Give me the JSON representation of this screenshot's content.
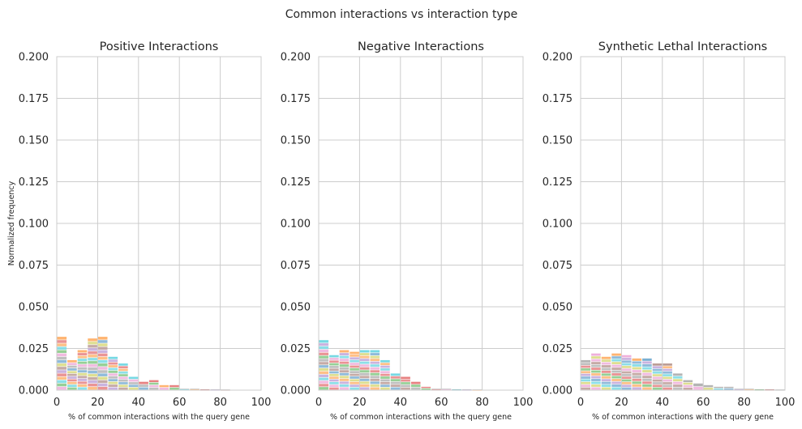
{
  "figure": {
    "suptitle": "Common interactions vs interaction type",
    "ylabel": "Normalized frequency"
  },
  "chart_data": [
    {
      "type": "bar",
      "title": "Positive Interactions",
      "xlabel": "% of common interactions with the query gene",
      "ylabel": "Normalized frequency",
      "xlim": [
        0,
        100
      ],
      "ylim": [
        0,
        0.2
      ],
      "xticks": [
        "0",
        "20",
        "40",
        "60",
        "80",
        "100"
      ],
      "yticks": [
        "0.000",
        "0.025",
        "0.050",
        "0.075",
        "0.100",
        "0.125",
        "0.150",
        "0.175",
        "0.200"
      ],
      "grid": true,
      "bin_width": 5,
      "bin_starts": [
        0,
        5,
        10,
        15,
        20,
        25,
        30,
        35,
        40,
        45,
        50,
        55,
        60,
        65,
        70,
        75,
        80,
        85,
        90,
        95
      ],
      "stacked_totals": [
        0.032,
        0.018,
        0.024,
        0.031,
        0.032,
        0.02,
        0.016,
        0.008,
        0.005,
        0.006,
        0.003,
        0.003,
        0.001,
        0.001,
        0.0005,
        0.0004,
        0.0003,
        0,
        0,
        0
      ],
      "segment_colors": [
        "#e377c2",
        "#2ca02c",
        "#17becf",
        "#ff7f0e",
        "#d62728",
        "#9467bd",
        "#8c564b",
        "#bcbd22",
        "#1f77b4",
        "#7f7f7f"
      ],
      "dominant_colors": [
        "#ff7f0e",
        "#ff7f0e",
        "#ff7f0e",
        "#ff7f0e",
        "#ff7f0e",
        "#17becf",
        "#17becf",
        "#17becf",
        "#d62728",
        "#d62728",
        "#ff7f0e",
        "#d62728",
        "#7f7f7f",
        "#7f7f7f",
        "#7f7f7f",
        "#7f7f7f",
        "#7f7f7f",
        "#7f7f7f",
        "#7f7f7f",
        "#7f7f7f"
      ]
    },
    {
      "type": "bar",
      "title": "Negative Interactions",
      "xlabel": "% of common interactions with the query gene",
      "ylabel": "",
      "xlim": [
        0,
        100
      ],
      "ylim": [
        0,
        0.2
      ],
      "xticks": [
        "0",
        "20",
        "40",
        "60",
        "80",
        "100"
      ],
      "yticks": [
        "0.000",
        "0.025",
        "0.050",
        "0.075",
        "0.100",
        "0.125",
        "0.150",
        "0.175",
        "0.200"
      ],
      "grid": true,
      "bin_width": 5,
      "bin_starts": [
        0,
        5,
        10,
        15,
        20,
        25,
        30,
        35,
        40,
        45,
        50,
        55,
        60,
        65,
        70,
        75,
        80,
        85,
        90,
        95
      ],
      "stacked_totals": [
        0.03,
        0.021,
        0.024,
        0.023,
        0.024,
        0.024,
        0.018,
        0.01,
        0.008,
        0.005,
        0.002,
        0.001,
        0.001,
        0.0005,
        0.0004,
        0.0003,
        0,
        0,
        0,
        0
      ],
      "segment_colors": [
        "#2ca02c",
        "#d62728",
        "#e377c2",
        "#17becf",
        "#9467bd",
        "#ff7f0e",
        "#bcbd22",
        "#1f77b4",
        "#8c564b",
        "#7f7f7f"
      ],
      "dominant_colors": [
        "#17becf",
        "#17becf",
        "#ff7f0e",
        "#ff7f0e",
        "#17becf",
        "#17becf",
        "#17becf",
        "#17becf",
        "#d62728",
        "#d62728",
        "#d62728",
        "#7f7f7f",
        "#7f7f7f",
        "#7f7f7f",
        "#7f7f7f",
        "#7f7f7f",
        "#7f7f7f",
        "#7f7f7f",
        "#7f7f7f",
        "#7f7f7f"
      ]
    },
    {
      "type": "bar",
      "title": "Synthetic Lethal Interactions",
      "xlabel": "% of common interactions with the query gene",
      "ylabel": "",
      "xlim": [
        0,
        100
      ],
      "ylim": [
        0,
        0.2
      ],
      "xticks": [
        "0",
        "20",
        "40",
        "60",
        "80",
        "100"
      ],
      "yticks": [
        "0.000",
        "0.025",
        "0.050",
        "0.075",
        "0.100",
        "0.125",
        "0.150",
        "0.175",
        "0.200"
      ],
      "grid": true,
      "bin_width": 5,
      "bin_starts": [
        0,
        5,
        10,
        15,
        20,
        25,
        30,
        35,
        40,
        45,
        50,
        55,
        60,
        65,
        70,
        75,
        80,
        85,
        90,
        95
      ],
      "stacked_totals": [
        0.018,
        0.022,
        0.02,
        0.022,
        0.021,
        0.019,
        0.019,
        0.016,
        0.016,
        0.01,
        0.006,
        0.004,
        0.003,
        0.002,
        0.002,
        0.001,
        0.001,
        0.0005,
        0.0005,
        0.0003
      ],
      "segment_colors": [
        "#8c564b",
        "#e377c2",
        "#bcbd22",
        "#17becf",
        "#1f77b4",
        "#9467bd",
        "#ff7f0e",
        "#2ca02c",
        "#d62728",
        "#7f7f7f"
      ],
      "dominant_colors": [
        "#7f7f7f",
        "#e377c2",
        "#ff7f0e",
        "#ff7f0e",
        "#e377c2",
        "#ff7f0e",
        "#1f77b4",
        "#8c564b",
        "#8c564b",
        "#7f7f7f",
        "#7f7f7f",
        "#7f7f7f",
        "#7f7f7f",
        "#7f7f7f",
        "#7f7f7f",
        "#7f7f7f",
        "#7f7f7f",
        "#7f7f7f",
        "#7f7f7f",
        "#7f7f7f"
      ]
    }
  ]
}
